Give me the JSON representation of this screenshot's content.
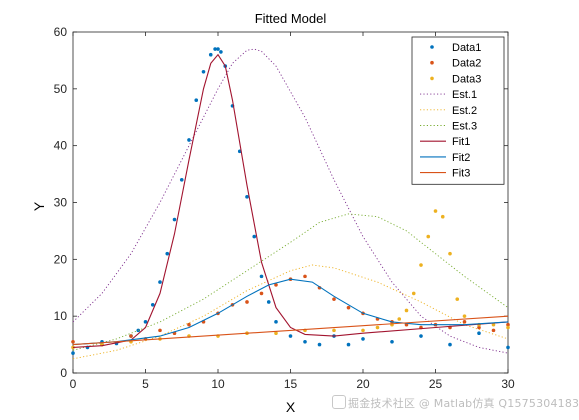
{
  "chart_data": {
    "type": "scatter",
    "title": "Fitted Model",
    "xlabel": "X",
    "ylabel": "Y",
    "xlim": [
      0,
      30
    ],
    "ylim": [
      0,
      60
    ],
    "xticks": [
      0,
      5,
      10,
      15,
      20,
      25,
      30
    ],
    "yticks": [
      0,
      10,
      20,
      30,
      40,
      50,
      60
    ],
    "legend_position": "top-right",
    "series": [
      {
        "name": "Data1",
        "kind": "points",
        "color": "#0072BD",
        "x": [
          0,
          1,
          2,
          3,
          4,
          4.5,
          5,
          5.5,
          6,
          6.5,
          7,
          7.5,
          8,
          8.5,
          9,
          9.5,
          9.8,
          10,
          10.2,
          10.5,
          11,
          11.5,
          12,
          12.5,
          13,
          13.5,
          14,
          15,
          16,
          17,
          18,
          19,
          20,
          22,
          24,
          26,
          28,
          30
        ],
        "y": [
          3.5,
          4.5,
          5.5,
          5.2,
          6.5,
          7.5,
          9,
          12,
          16,
          21,
          27,
          34,
          41,
          48,
          53,
          56,
          57,
          57,
          56.5,
          54,
          47,
          39,
          31,
          24,
          17,
          12.5,
          9,
          6.5,
          5.5,
          5,
          6.5,
          5,
          6,
          5.5,
          6.5,
          5,
          7,
          4.5
        ]
      },
      {
        "name": "Data2",
        "kind": "points",
        "color": "#D95319",
        "x": [
          0,
          2,
          4,
          5,
          6,
          7,
          8,
          9,
          10,
          11,
          12,
          13,
          14,
          15,
          16,
          17,
          18,
          19,
          20,
          21,
          22,
          23,
          24,
          25,
          26,
          27,
          28,
          29,
          30
        ],
        "y": [
          5.5,
          5,
          6.5,
          6,
          7.5,
          7,
          8.5,
          9,
          10.5,
          12,
          12.5,
          14,
          15.5,
          16.5,
          17,
          15,
          13,
          11.5,
          10.5,
          9.5,
          9,
          8.5,
          8,
          8.5,
          8,
          9,
          8,
          7.5,
          8.5
        ]
      },
      {
        "name": "Data3",
        "kind": "points",
        "color": "#EDB120",
        "x": [
          0,
          2,
          4,
          6,
          8,
          10,
          12,
          14,
          16,
          18,
          20,
          21,
          22,
          22.5,
          23,
          23.5,
          24,
          24.5,
          25,
          25.5,
          26,
          26.5,
          27,
          28,
          29,
          30
        ],
        "y": [
          4.5,
          5,
          5.5,
          6,
          6.5,
          6.5,
          7,
          7,
          7.5,
          7.5,
          7.5,
          8,
          8.5,
          9.5,
          11,
          14,
          19,
          24,
          28.5,
          27.5,
          21,
          13,
          10,
          8.5,
          8.5,
          8
        ]
      },
      {
        "name": "Est.1",
        "kind": "dotted",
        "color": "#7E2F8E",
        "x": [
          0,
          2,
          4,
          6,
          8,
          10,
          11,
          12,
          12.5,
          13,
          14,
          16,
          18,
          20,
          22,
          24,
          26,
          28,
          30
        ],
        "y": [
          9,
          14,
          21,
          30,
          40,
          50,
          54.5,
          56.8,
          57,
          56.6,
          54,
          45,
          34,
          24,
          16,
          10,
          6.5,
          4.5,
          3.5
        ]
      },
      {
        "name": "Est.2",
        "kind": "dotted",
        "color": "#EDB120",
        "x": [
          0,
          3,
          6,
          9,
          12,
          15,
          16.5,
          18,
          21,
          24,
          27,
          30
        ],
        "y": [
          2.5,
          4,
          6.5,
          10,
          14.5,
          18,
          19,
          18.5,
          16,
          12.5,
          8.5,
          6
        ]
      },
      {
        "name": "Est.3",
        "kind": "dotted",
        "color": "#77AC30",
        "x": [
          0,
          3,
          6,
          9,
          12,
          15,
          17,
          19,
          21,
          23,
          25,
          27,
          30
        ],
        "y": [
          4,
          6,
          9,
          13,
          18,
          23,
          26.5,
          28,
          27.5,
          25,
          21,
          17,
          11.5
        ]
      },
      {
        "name": "Fit1",
        "kind": "line",
        "color": "#A2142F",
        "x": [
          0,
          2,
          4,
          5,
          6,
          7,
          8,
          9,
          9.5,
          10,
          10.5,
          11,
          12,
          13,
          14,
          15,
          16,
          18,
          20,
          25,
          30
        ],
        "y": [
          4.5,
          4.8,
          5.8,
          8,
          14,
          24.5,
          37.5,
          50,
          54.5,
          56,
          54,
          48,
          33,
          19.5,
          11.5,
          8,
          6.8,
          6.5,
          7,
          8,
          9
        ]
      },
      {
        "name": "Fit2",
        "kind": "line",
        "color": "#0072BD",
        "x": [
          0,
          3,
          6,
          8,
          10,
          12,
          13.5,
          15,
          16.5,
          18,
          20,
          22,
          24,
          27,
          30
        ],
        "y": [
          5,
          5.5,
          6.5,
          8,
          10.5,
          13.5,
          15.5,
          16.5,
          16,
          13.5,
          10.5,
          9,
          8.5,
          8.5,
          9
        ]
      },
      {
        "name": "Fit3",
        "kind": "line",
        "color": "#D95319",
        "x": [
          0,
          30
        ],
        "y": [
          5,
          10
        ]
      }
    ]
  },
  "watermark": "掘金技术社区 @ Matlab仿真 Q1575304183"
}
